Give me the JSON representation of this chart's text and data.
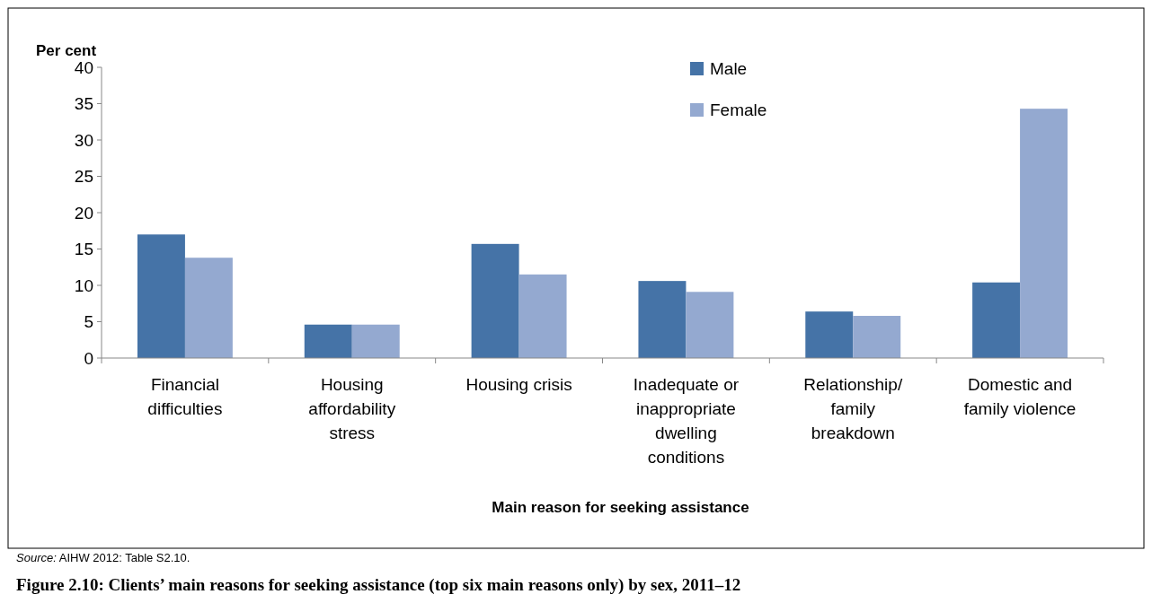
{
  "chart_data": {
    "type": "bar",
    "title": "Figure 2.10: Clients’ main reasons for seeking assistance (top six main reasons only) by sex, 2011–12",
    "xlabel": "Main reason for seeking assistance",
    "ylabel": "Per cent",
    "categories": [
      "Financial difficulties",
      "Housing affordability stress",
      "Housing crisis",
      "Inadequate or inappropriate dwelling conditions",
      "Relationship/ family breakdown",
      "Domestic and family violence"
    ],
    "series": [
      {
        "name": "Male",
        "color": "#4573a7",
        "values": [
          17.0,
          4.6,
          15.7,
          10.6,
          6.4,
          10.4
        ]
      },
      {
        "name": "Female",
        "color": "#94a9d0",
        "values": [
          13.8,
          4.6,
          11.5,
          9.1,
          5.8,
          34.3
        ]
      }
    ],
    "ylim": [
      0,
      40
    ],
    "yticks": [
      0,
      5,
      10,
      15,
      20,
      25,
      30,
      35,
      40
    ],
    "grid": false,
    "legend": "top",
    "annotations": [
      "Source: AIHW 2012: Table S2.10."
    ]
  }
}
